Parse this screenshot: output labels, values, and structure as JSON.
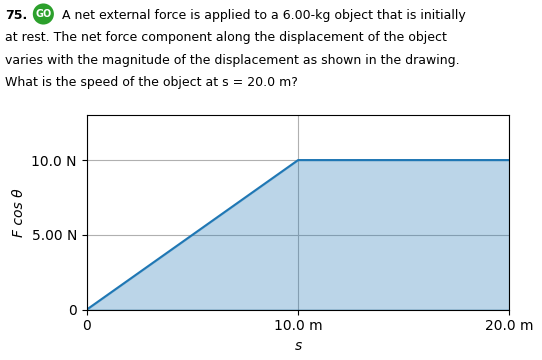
{
  "chart_data": {
    "type": "area",
    "x": [
      0,
      10.0,
      20.0
    ],
    "values": [
      0,
      10.0,
      10.0
    ],
    "xlim": [
      0,
      20.0
    ],
    "ylim": [
      0,
      13.0
    ],
    "xticks": [
      0,
      {
        "value": 10.0,
        "label": "10.0 m"
      },
      {
        "value": 20.0,
        "label": "20.0 m"
      }
    ],
    "yticks": [
      0,
      {
        "value": 5.0,
        "label": "5.00 N"
      },
      {
        "value": 10.0,
        "label": "10.0 N"
      }
    ],
    "xlabel": "s",
    "ylabel": "F cos θ",
    "grid": true,
    "annotations": [
      "75.",
      "GO",
      "A net external force is applied to a 6.00-kg object that is initially",
      "at rest. The net force component along the displacement of the object",
      "varies with the magnitude of the displacement as shown in the drawing.",
      "What is the speed of the object at s = 20.0 m?"
    ]
  }
}
